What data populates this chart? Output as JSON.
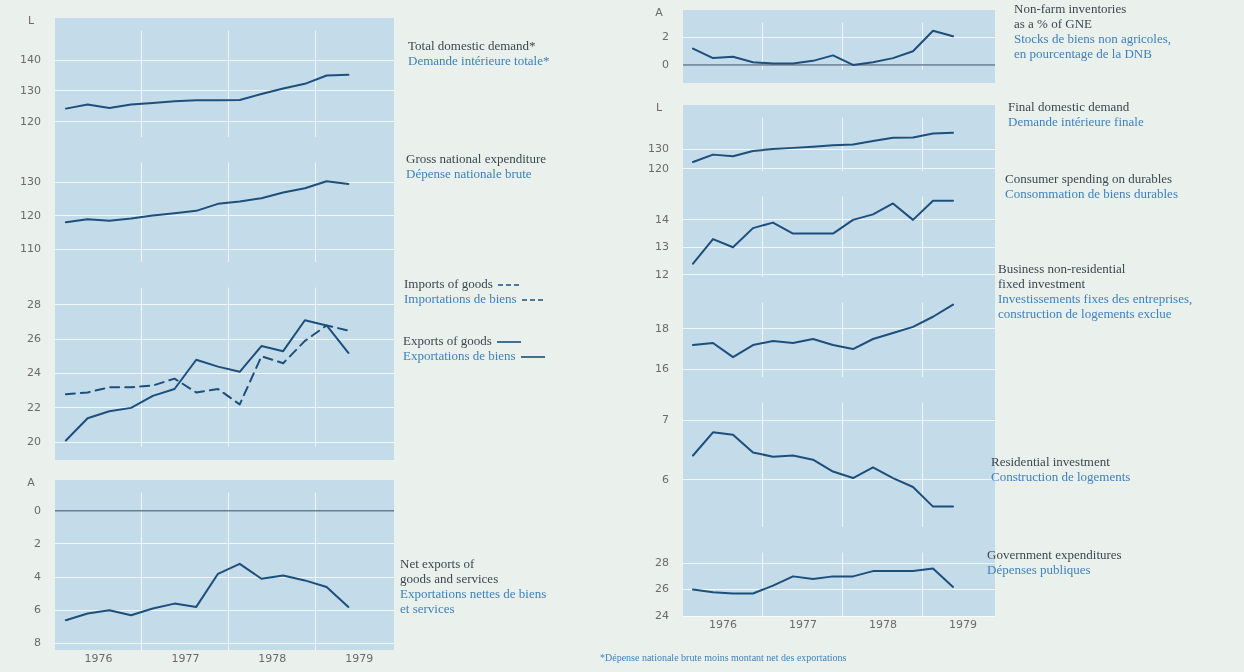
{
  "chart_data": [
    {
      "type": "line",
      "ylabel": "L",
      "x": [
        1976.125,
        1976.375,
        1976.625,
        1976.875,
        1977.125,
        1977.375,
        1977.625,
        1977.875,
        1978.125,
        1978.375,
        1978.625,
        1978.875,
        1979.125,
        1979.375
      ],
      "series": [
        {
          "name": "Total domestic demand*\nDemande intérieure totale*",
          "color": "#1d4f7c",
          "values": [
            124.3,
            125.6,
            124.5,
            125.6,
            126.1,
            126.7,
            127.0,
            127.0,
            127.1,
            129.0,
            130.8,
            132.3,
            135.0,
            135.2
          ]
        }
      ],
      "xlim": [
        1976,
        1979.9
      ],
      "xticks": [
        {
          "value": 1977,
          "label": null
        },
        {
          "value": 1978,
          "label": null
        },
        {
          "value": 1979,
          "label": null
        }
      ],
      "ylim": [
        115,
        149.5
      ],
      "yticks": [
        120,
        130,
        140
      ],
      "grid": true,
      "tick_labels": "y",
      "annotations": [
        "*Dépense nationale brute moins montant net des exportations"
      ]
    },
    {
      "type": "line",
      "x": [
        1976.125,
        1976.375,
        1976.625,
        1976.875,
        1977.125,
        1977.375,
        1977.625,
        1977.875,
        1978.125,
        1978.375,
        1978.625,
        1978.875,
        1979.125,
        1979.375
      ],
      "series": [
        {
          "name": "Gross national expenditure\nDépense nationale brute",
          "color": "#1d4f7c",
          "values": [
            118.1,
            119.0,
            118.5,
            119.2,
            120.1,
            120.8,
            121.5,
            123.6,
            124.3,
            125.3,
            127.0,
            128.3,
            130.4,
            129.6
          ]
        }
      ],
      "xlim": [
        1976,
        1979.9
      ],
      "xticks": [
        {
          "value": 1977,
          "label": null
        },
        {
          "value": 1978,
          "label": null
        },
        {
          "value": 1979,
          "label": null
        }
      ],
      "ylim": [
        106,
        136
      ],
      "yticks": [
        110,
        120,
        130
      ],
      "grid": true,
      "tick_labels": "y"
    },
    {
      "type": "line",
      "legend": "right",
      "x": [
        1976.125,
        1976.375,
        1976.625,
        1976.875,
        1977.125,
        1977.375,
        1977.625,
        1977.875,
        1978.125,
        1978.375,
        1978.625,
        1978.875,
        1979.125,
        1979.375
      ],
      "series": [
        {
          "name": "Imports of goods\nImportations de biens",
          "color": "#1d4f7c",
          "line_style": "dashed",
          "values": [
            22.8,
            22.9,
            23.2,
            23.2,
            23.3,
            23.7,
            22.9,
            23.1,
            22.2,
            25.0,
            24.6,
            25.9,
            26.8,
            26.5
          ]
        },
        {
          "name": "Exports of goods\nExportations de biens",
          "color": "#1d4f7c",
          "line_style": "solid",
          "values": [
            20.1,
            21.4,
            21.8,
            22.0,
            22.7,
            23.1,
            24.8,
            24.4,
            24.1,
            25.6,
            25.3,
            27.1,
            26.8,
            25.2
          ]
        }
      ],
      "xlim": [
        1976,
        1979.9
      ],
      "xticks": [
        {
          "value": 1977,
          "label": null
        },
        {
          "value": 1978,
          "label": null
        },
        {
          "value": 1979,
          "label": null
        }
      ],
      "ylim": [
        19.7,
        29
      ],
      "yticks": [
        20,
        22,
        24,
        26,
        28
      ],
      "grid": true,
      "tick_labels": "y"
    },
    {
      "type": "line",
      "ylabel": "A",
      "x": [
        1976.125,
        1976.375,
        1976.625,
        1976.875,
        1977.125,
        1977.375,
        1977.625,
        1977.875,
        1978.125,
        1978.375,
        1978.625,
        1978.875,
        1979.125,
        1979.375
      ],
      "series": [
        {
          "name": "Net exports of\ngoods and services\nExportations nettes de biens\net services",
          "color": "#1d4f7c",
          "values": [
            6.6,
            6.2,
            6.0,
            6.3,
            5.9,
            5.6,
            5.8,
            3.8,
            3.2,
            4.1,
            3.9,
            4.2,
            4.6,
            5.8
          ]
        }
      ],
      "xlim": [
        1976,
        1979.9
      ],
      "xticks": [
        {
          "value": 1976.5,
          "label": "1976"
        },
        {
          "value": 1977,
          "label": null
        },
        {
          "value": 1977.5,
          "label": "1977"
        },
        {
          "value": 1978,
          "label": null
        },
        {
          "value": 1978.5,
          "label": "1978"
        },
        {
          "value": 1979,
          "label": null
        },
        {
          "value": 1979.5,
          "label": "1979"
        }
      ],
      "ylim": [
        8.4,
        -1.1
      ],
      "yticks": [
        0,
        2,
        4,
        6,
        8
      ],
      "grid": true,
      "ref_lines": [
        {
          "axis": "y",
          "value": 0,
          "color": "#2a4a66"
        }
      ]
    },
    {
      "type": "line",
      "ylabel": "A",
      "x": [
        1976.125,
        1976.375,
        1976.625,
        1976.875,
        1977.125,
        1977.375,
        1977.625,
        1977.875,
        1978.125,
        1978.375,
        1978.625,
        1978.875,
        1979.125,
        1979.375
      ],
      "series": [
        {
          "name": "Non-farm inventories\nas a % of GNE\nStocks de biens non agricoles,\nen pourcentage de la DNB",
          "color": "#1d4f7c",
          "values": [
            1.2,
            0.5,
            0.6,
            0.2,
            0.1,
            0.1,
            0.3,
            0.7,
            0,
            0.2,
            0.5,
            1.0,
            2.5,
            2.1
          ]
        }
      ],
      "xlim": [
        1976,
        1979.9
      ],
      "xticks": [
        {
          "value": 1977,
          "label": null
        },
        {
          "value": 1978,
          "label": null
        },
        {
          "value": 1979,
          "label": null
        }
      ],
      "ylim": [
        -0.4,
        3.1
      ],
      "yticks": [
        0,
        2
      ],
      "grid": true,
      "tick_labels": "y",
      "ref_lines": [
        {
          "axis": "y",
          "value": 0,
          "color": "#2a4a66"
        }
      ]
    },
    {
      "type": "line",
      "ylabel": "L",
      "x": [
        1976.125,
        1976.375,
        1976.625,
        1976.875,
        1977.125,
        1977.375,
        1977.625,
        1977.875,
        1978.125,
        1978.375,
        1978.625,
        1978.875,
        1979.125,
        1979.375
      ],
      "series": [
        {
          "name": "Final domestic demand\nDemande intérieure finale",
          "color": "#1d4f7c",
          "values": [
            123.5,
            127.3,
            126.5,
            129.2,
            130.2,
            130.8,
            131.4,
            132.1,
            132.6,
            134.4,
            136.1,
            136.2,
            138.2,
            138.7
          ]
        }
      ],
      "xlim": [
        1976,
        1979.9
      ],
      "xticks": [
        {
          "value": 1977,
          "label": null
        },
        {
          "value": 1978,
          "label": null
        },
        {
          "value": 1979,
          "label": null
        }
      ],
      "ylim": [
        118.6,
        146.5
      ],
      "yticks": [
        120,
        130
      ],
      "grid": true,
      "tick_labels": "y"
    },
    {
      "type": "line",
      "x": [
        1976.125,
        1976.375,
        1976.625,
        1976.875,
        1977.125,
        1977.375,
        1977.625,
        1977.875,
        1978.125,
        1978.375,
        1978.625,
        1978.875,
        1979.125,
        1979.375
      ],
      "series": [
        {
          "name": "Consumer spending on durables\nConsommation de biens durables",
          "color": "#1d4f7c",
          "values": [
            12.4,
            13.3,
            13.0,
            13.7,
            13.9,
            13.5,
            13.5,
            13.5,
            14.0,
            14.2,
            14.6,
            14.0,
            14.7,
            14.7
          ]
        }
      ],
      "xlim": [
        1976,
        1979.9
      ],
      "xticks": [
        {
          "value": 1977,
          "label": null
        },
        {
          "value": 1978,
          "label": null
        },
        {
          "value": 1979,
          "label": null
        }
      ],
      "ylim": [
        11.9,
        14.85
      ],
      "yticks": [
        12,
        13,
        14
      ],
      "grid": true,
      "tick_labels": "y"
    },
    {
      "type": "line",
      "x": [
        1976.125,
        1976.375,
        1976.625,
        1976.875,
        1977.125,
        1977.375,
        1977.625,
        1977.875,
        1978.125,
        1978.375,
        1978.625,
        1978.875,
        1979.125,
        1979.375
      ],
      "series": [
        {
          "name": "Business non-residential\nfixed investment\nInvestissements fixes des entreprises,\nconstruction de logements exclue",
          "color": "#1d4f7c",
          "values": [
            17.2,
            17.3,
            16.6,
            17.2,
            17.4,
            17.3,
            17.5,
            17.2,
            17.0,
            17.5,
            17.8,
            18.1,
            18.6,
            19.2
          ]
        }
      ],
      "xlim": [
        1976,
        1979.9
      ],
      "xticks": [
        {
          "value": 1977,
          "label": null
        },
        {
          "value": 1978,
          "label": null
        },
        {
          "value": 1979,
          "label": null
        }
      ],
      "ylim": [
        15.6,
        19.3
      ],
      "yticks": [
        16,
        18
      ],
      "grid": true,
      "tick_labels": "y"
    },
    {
      "type": "line",
      "x": [
        1976.125,
        1976.375,
        1976.625,
        1976.875,
        1977.125,
        1977.375,
        1977.625,
        1977.875,
        1978.125,
        1978.375,
        1978.625,
        1978.875,
        1979.125,
        1979.375
      ],
      "series": [
        {
          "name": "Residential investment\nConstruction de logements",
          "color": "#1d4f7c",
          "values": [
            6.41,
            6.8,
            6.76,
            6.46,
            6.39,
            6.41,
            6.34,
            6.14,
            6.03,
            6.21,
            6.03,
            5.88,
            5.55,
            5.55
          ]
        }
      ],
      "xlim": [
        1976,
        1979.9
      ],
      "xticks": [
        {
          "value": 1977,
          "label": null
        },
        {
          "value": 1978,
          "label": null
        },
        {
          "value": 1979,
          "label": null
        }
      ],
      "ylim": [
        5.2,
        7.3
      ],
      "yticks": [
        6,
        7
      ],
      "grid": true,
      "tick_labels": "y"
    },
    {
      "type": "line",
      "x": [
        1976.125,
        1976.375,
        1976.625,
        1976.875,
        1977.125,
        1977.375,
        1977.625,
        1977.875,
        1978.125,
        1978.375,
        1978.625,
        1978.875,
        1979.125,
        1979.375
      ],
      "series": [
        {
          "name": "Government expenditures\nDépenses publiques",
          "color": "#1d4f7c",
          "values": [
            26.0,
            25.8,
            25.7,
            25.7,
            26.3,
            27.0,
            26.8,
            27.0,
            27.0,
            27.4,
            27.4,
            27.4,
            27.6,
            26.2
          ]
        }
      ],
      "xlim": [
        1976,
        1979.9
      ],
      "xticks": [
        {
          "value": 1976.5,
          "label": "1976"
        },
        {
          "value": 1977,
          "label": null
        },
        {
          "value": 1977.5,
          "label": "1977"
        },
        {
          "value": 1978,
          "label": null
        },
        {
          "value": 1978.5,
          "label": "1978"
        },
        {
          "value": 1979,
          "label": null
        },
        {
          "value": 1979.5,
          "label": "1979"
        }
      ],
      "ylim": [
        24,
        28.8
      ],
      "yticks": [
        24,
        26,
        28
      ],
      "grid": true
    }
  ]
}
